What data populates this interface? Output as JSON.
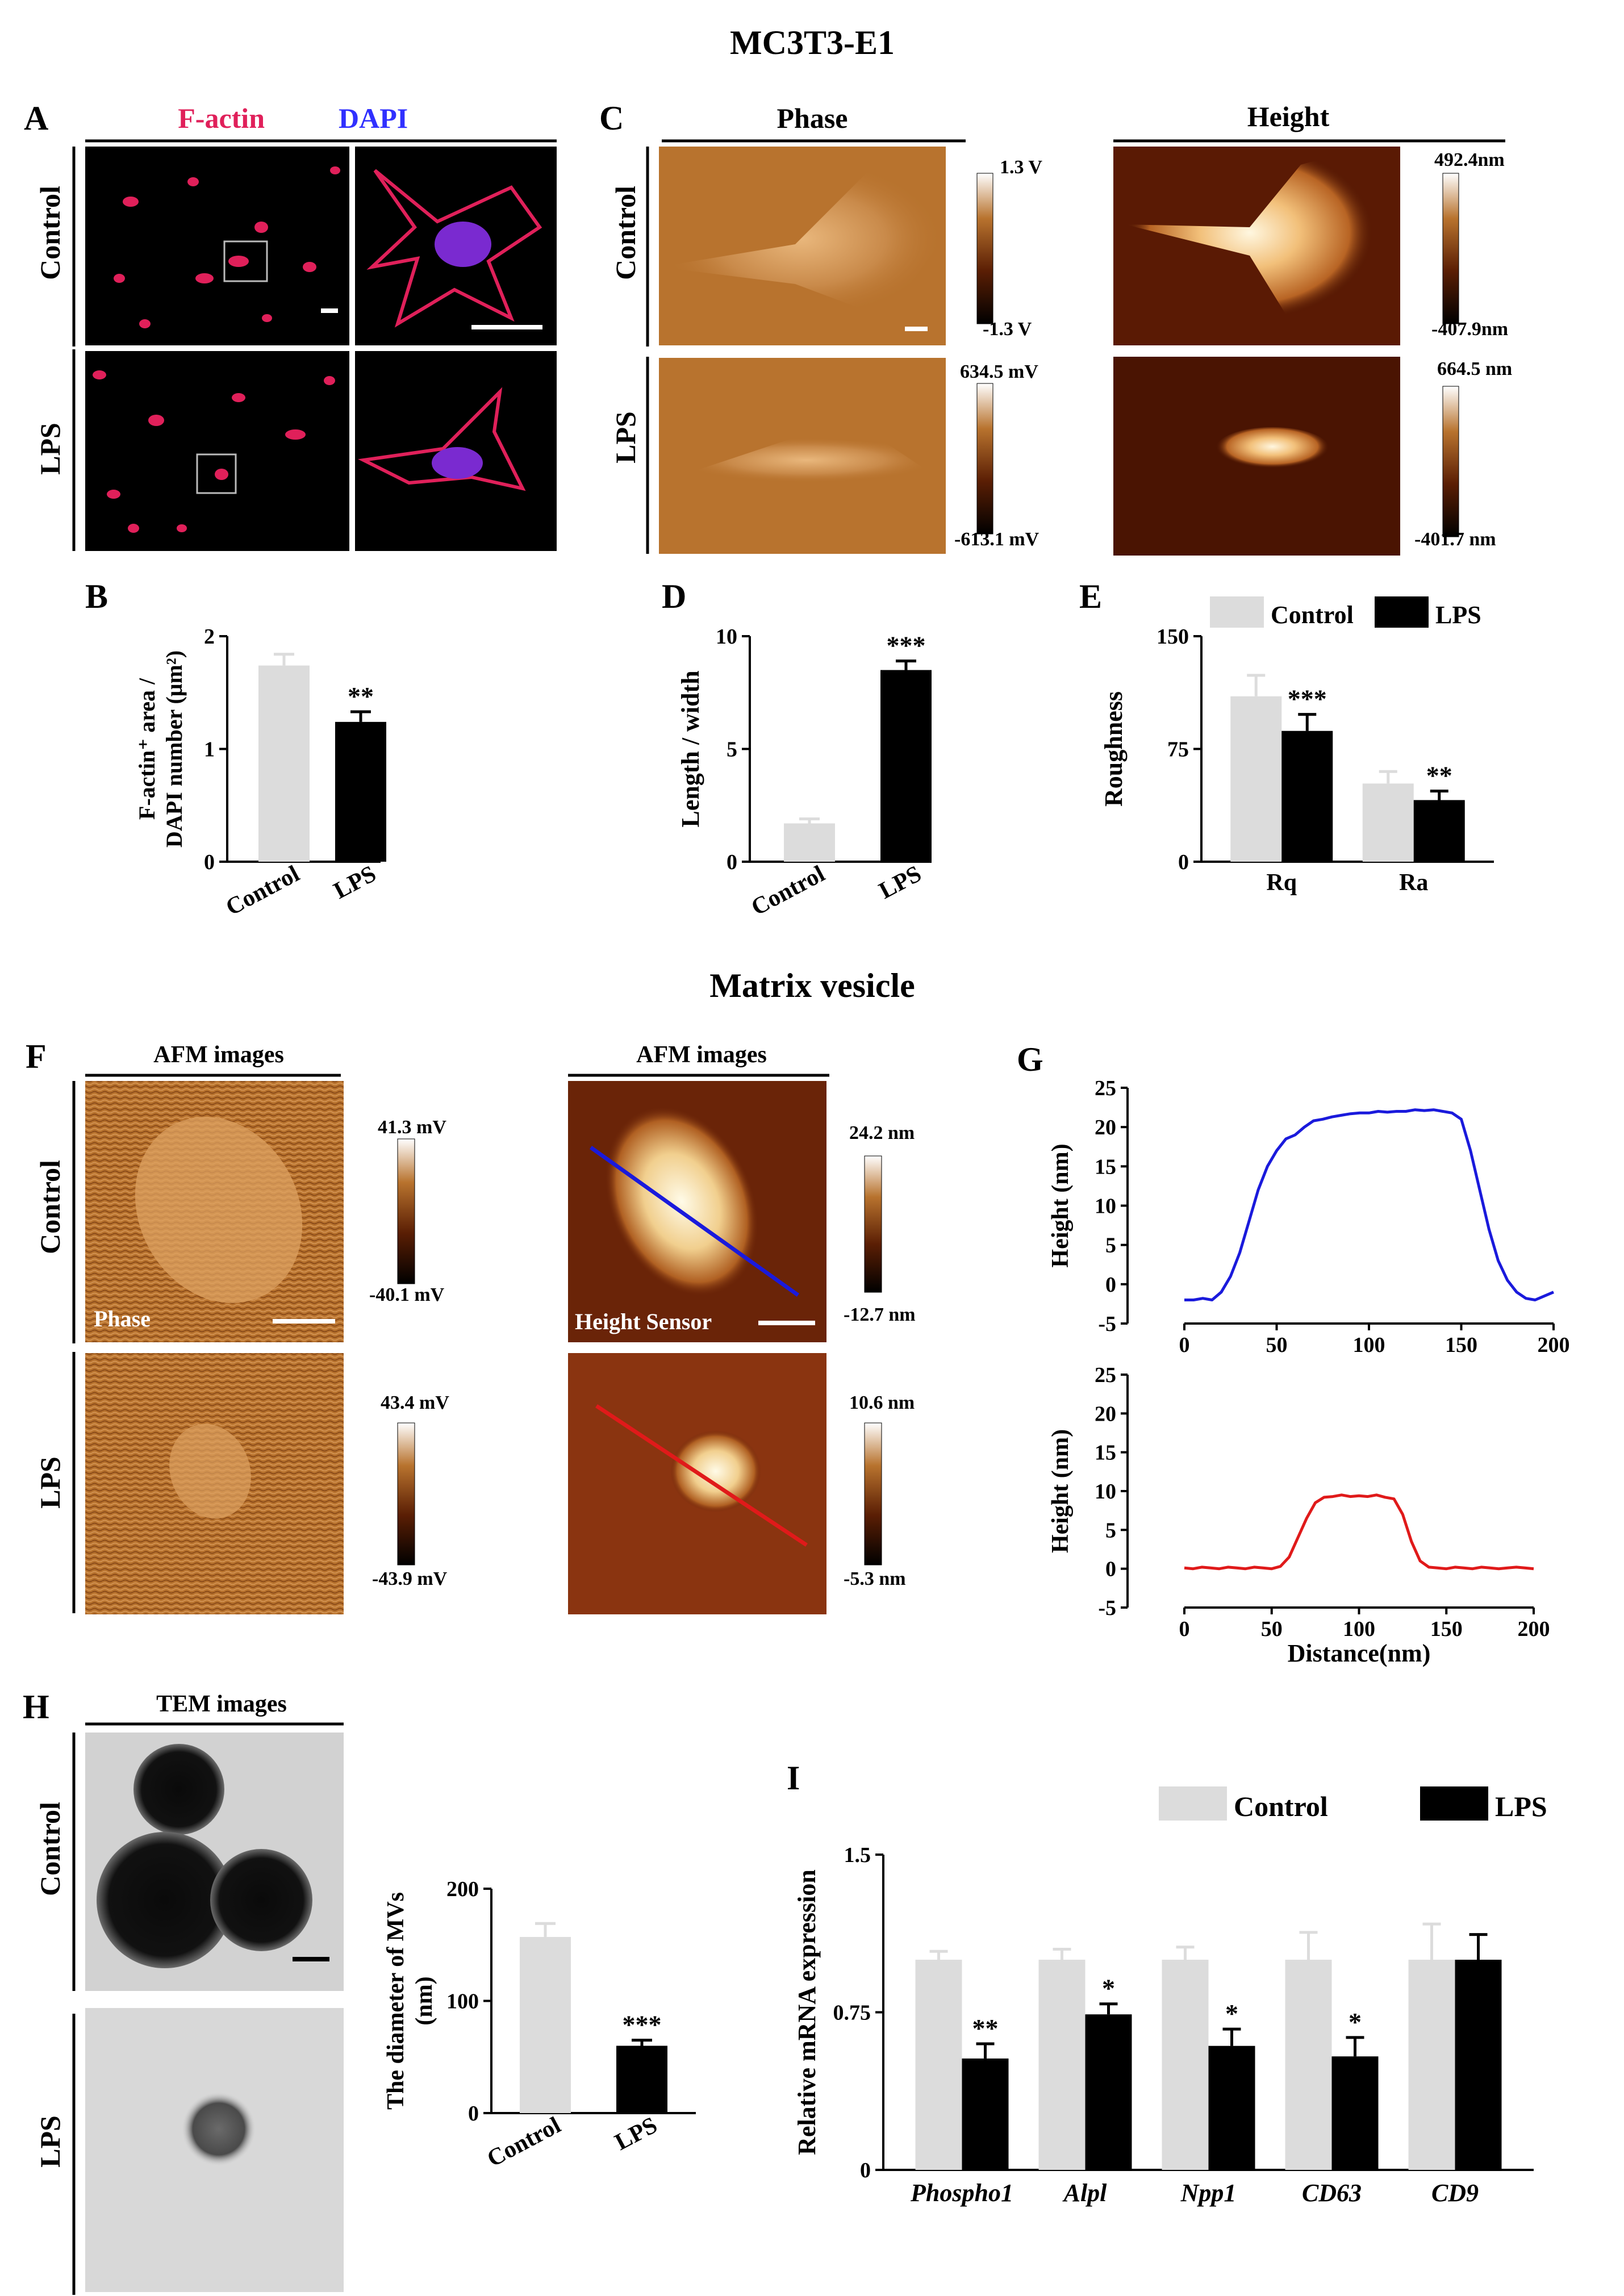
{
  "figure": {
    "title_top": "MC3T3-E1",
    "title_mid": "Matrix vesicle",
    "colors": {
      "control_bar": "#dcdcdc",
      "lps_bar": "#000000",
      "blue_line": "#1a1adc",
      "red_line": "#e01a1a",
      "afm_dark": "#2a0a00",
      "afm_mid": "#a0521c",
      "afm_light": "#fff6dc",
      "fluor_red": "#e0205a",
      "fluor_blue": "#3030ff"
    }
  },
  "panelA": {
    "letter": "A",
    "header_red": "F-actin",
    "header_blue": "DAPI",
    "row_labels": [
      "Control",
      "LPS"
    ]
  },
  "panelC": {
    "letter": "C",
    "col_phase": "Phase",
    "col_height": "Height",
    "row_labels": [
      "Control",
      "LPS"
    ],
    "scales": {
      "phase_control": [
        "1.3 V",
        "-1.3 V"
      ],
      "height_control": [
        "492.4nm",
        "-407.9nm"
      ],
      "phase_lps": [
        "634.5 mV",
        "-613.1 mV"
      ],
      "height_lps": [
        "664.5 nm",
        "-401.7 nm"
      ]
    }
  },
  "panelF": {
    "letter": "F",
    "col_phase": "AFM images",
    "col_height": "AFM images",
    "row_labels": [
      "Control",
      "LPS"
    ],
    "phase_tag": "Phase",
    "height_tag": "Height Sensor",
    "scales": {
      "phase_control": [
        "41.3 mV",
        "-40.1 mV"
      ],
      "height_control": [
        "24.2 nm",
        "-12.7 nm"
      ],
      "phase_lps": [
        "43.4 mV",
        "-43.9 mV"
      ],
      "height_lps": [
        "10.6 nm",
        "-5.3 nm"
      ]
    }
  },
  "panelH": {
    "letter": "H",
    "header": "TEM images",
    "row_labels": [
      "Control",
      "LPS"
    ]
  },
  "chart_data": [
    {
      "id": "B",
      "type": "bar",
      "letter": "B",
      "categories": [
        "Control",
        "LPS"
      ],
      "values": [
        1.74,
        1.24
      ],
      "errors": [
        0.1,
        0.09
      ],
      "ylim": [
        0,
        2
      ],
      "yticks": [
        "0",
        "1",
        "2"
      ],
      "ylabel_line1": "F-actin⁺ area /",
      "ylabel_line2": "DAPI number (μm²)",
      "annotations": [
        "",
        "**"
      ]
    },
    {
      "id": "D",
      "type": "bar",
      "letter": "D",
      "categories": [
        "Control",
        "LPS"
      ],
      "values": [
        1.7,
        8.5
      ],
      "errors": [
        0.2,
        0.4
      ],
      "ylim": [
        0,
        10
      ],
      "yticks": [
        "0",
        "5",
        "10"
      ],
      "ylabel_line1": "Length / width",
      "annotations": [
        "",
        "***"
      ]
    },
    {
      "id": "E",
      "type": "bar",
      "letter": "E",
      "categories": [
        "Rq",
        "Ra"
      ],
      "series": [
        {
          "name": "Control",
          "values": [
            110,
            52
          ],
          "errors": [
            14,
            8
          ]
        },
        {
          "name": "LPS",
          "values": [
            87,
            41
          ],
          "errors": [
            11,
            6
          ]
        }
      ],
      "ylim": [
        0,
        150
      ],
      "yticks": [
        "0",
        "75",
        "150"
      ],
      "ylabel_line1": "Roughness",
      "annotations": [
        "***",
        "**"
      ],
      "legend": [
        "Control",
        "LPS"
      ]
    },
    {
      "id": "G1",
      "type": "line",
      "letter": "G",
      "series_name": "Control",
      "x": [
        0,
        5,
        10,
        15,
        20,
        25,
        30,
        35,
        40,
        45,
        50,
        55,
        60,
        65,
        70,
        75,
        80,
        85,
        90,
        95,
        100,
        105,
        110,
        115,
        120,
        125,
        130,
        135,
        140,
        145,
        150,
        155,
        160,
        165,
        170,
        175,
        180,
        185,
        190,
        195,
        200
      ],
      "y": [
        -2,
        -2,
        -1.8,
        -2,
        -1,
        1,
        4,
        8,
        12,
        15,
        17,
        18.5,
        19,
        20,
        20.8,
        21,
        21.3,
        21.5,
        21.7,
        21.8,
        21.8,
        22,
        21.9,
        22,
        22,
        22.2,
        22.1,
        22.2,
        22,
        21.8,
        21,
        17,
        12,
        7,
        3,
        0.5,
        -1,
        -1.8,
        -2,
        -1.5,
        -1
      ],
      "xlim": [
        0,
        200
      ],
      "ylim": [
        -5,
        25
      ],
      "xticks": [
        "0",
        "50",
        "100",
        "150",
        "200"
      ],
      "yticks": [
        "-5",
        "0",
        "5",
        "10",
        "15",
        "20",
        "25"
      ],
      "ylabel": "Height (nm)"
    },
    {
      "id": "G2",
      "type": "line",
      "series_name": "LPS",
      "x": [
        0,
        5,
        10,
        15,
        20,
        25,
        30,
        35,
        40,
        45,
        50,
        55,
        60,
        65,
        70,
        75,
        80,
        85,
        90,
        95,
        100,
        105,
        110,
        115,
        120,
        125,
        130,
        135,
        140,
        145,
        150,
        155,
        160,
        165,
        170,
        175,
        180,
        185,
        190,
        195,
        200
      ],
      "y": [
        0.1,
        0,
        0.2,
        0.1,
        0,
        0.2,
        0.1,
        0,
        0.2,
        0.1,
        0,
        0.3,
        1.5,
        4,
        6.5,
        8.5,
        9.2,
        9.3,
        9.5,
        9.3,
        9.4,
        9.3,
        9.5,
        9.2,
        9,
        7,
        3.5,
        1,
        0.2,
        0.1,
        0,
        0.2,
        0.1,
        0,
        0.2,
        0.1,
        0,
        0.1,
        0.2,
        0.1,
        0
      ],
      "xlim": [
        0,
        200
      ],
      "ylim": [
        -5,
        25
      ],
      "xticks": [
        "0",
        "50",
        "100",
        "150",
        "200"
      ],
      "yticks": [
        "-5",
        "0",
        "5",
        "10",
        "15",
        "20",
        "25"
      ],
      "ylabel": "Height (nm)",
      "xlabel": "Distance(nm)"
    },
    {
      "id": "H",
      "type": "bar",
      "categories": [
        "Control",
        "LPS"
      ],
      "values": [
        157,
        60
      ],
      "errors": [
        12,
        5
      ],
      "ylim": [
        0,
        200
      ],
      "yticks": [
        "0",
        "100",
        "200"
      ],
      "ylabel_line1": "The diameter of  MVs",
      "ylabel_line2": "(nm)",
      "annotations": [
        "",
        "***"
      ]
    },
    {
      "id": "I",
      "type": "bar",
      "letter": "I",
      "categories": [
        "Phospho1",
        "Alpl",
        "Npp1",
        "CD63",
        "CD9"
      ],
      "series": [
        {
          "name": "Control",
          "values": [
            1.0,
            1.0,
            1.0,
            1.0,
            1.0
          ],
          "errors": [
            0.04,
            0.05,
            0.06,
            0.13,
            0.17
          ]
        },
        {
          "name": "LPS",
          "values": [
            0.53,
            0.74,
            0.59,
            0.54,
            1.0
          ],
          "errors": [
            0.07,
            0.05,
            0.08,
            0.09,
            0.12
          ]
        }
      ],
      "ylim": [
        0,
        1.5
      ],
      "yticks": [
        "0",
        "0.75",
        "1.5"
      ],
      "ylabel_line1": "Relative mRNA expression",
      "annotations": [
        "**",
        "*",
        "*",
        "*",
        ""
      ],
      "legend": [
        "Control",
        "LPS"
      ]
    }
  ]
}
